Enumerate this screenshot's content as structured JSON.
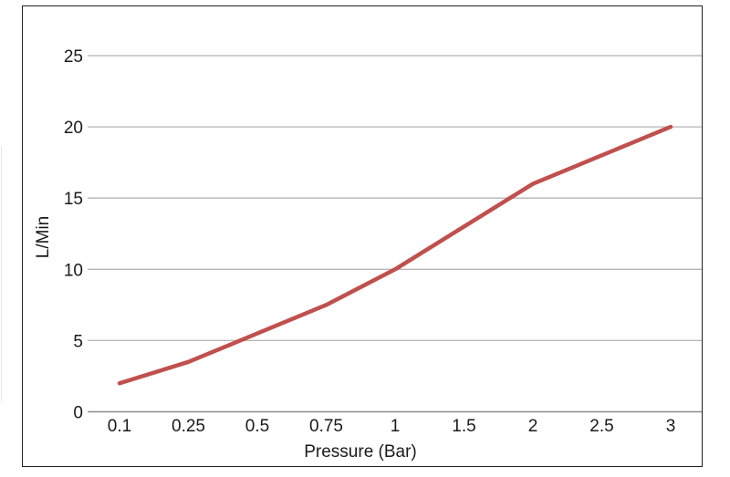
{
  "chart_data": {
    "type": "line",
    "title": "",
    "xlabel": "Pressure (Bar)",
    "ylabel": "L/Min",
    "categories": [
      "0.1",
      "0.25",
      "0.5",
      "0.75",
      "1",
      "1.5",
      "2",
      "2.5",
      "3"
    ],
    "series": [
      {
        "name": "",
        "values": [
          2,
          3.5,
          5.5,
          7.5,
          10,
          13,
          16,
          18,
          20
        ],
        "color": "#c0504d"
      }
    ],
    "ylim": [
      0,
      25
    ],
    "yticks": [
      0,
      5,
      10,
      15,
      20,
      25
    ],
    "grid": true,
    "legend": "none"
  }
}
